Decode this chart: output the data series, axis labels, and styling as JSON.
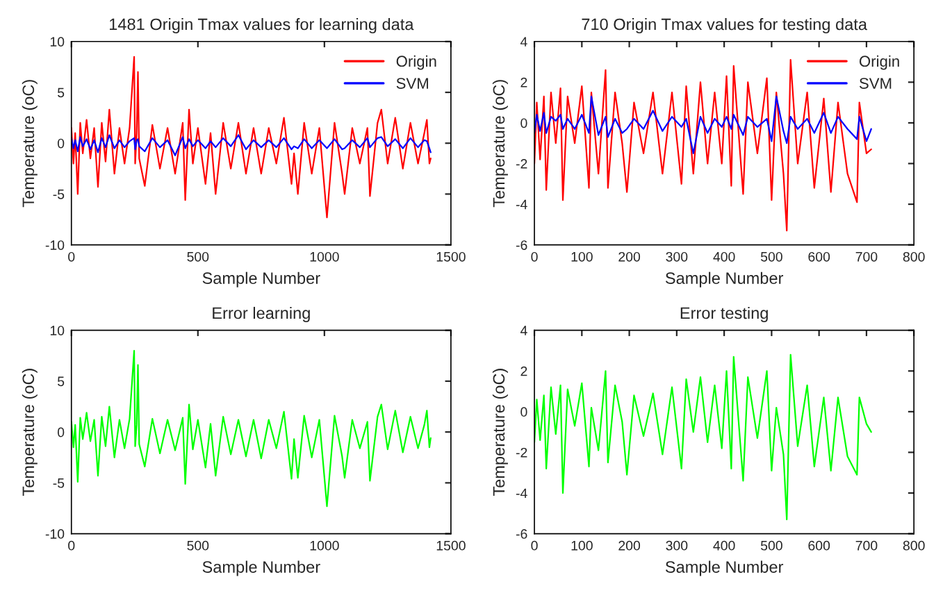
{
  "chart_data": [
    {
      "type": "line",
      "title": "1481 Origin Tmax values for learning data",
      "xlabel": "Sample Number",
      "ylabel": "Temperature (oC)",
      "xlim": [
        0,
        1500
      ],
      "xticks": [
        0,
        500,
        1000,
        1500
      ],
      "ylim": [
        -10,
        10
      ],
      "yticks": [
        -10,
        -5,
        0,
        5,
        10
      ],
      "legend": "top right",
      "x": [
        0,
        8,
        15,
        25,
        35,
        45,
        60,
        75,
        90,
        105,
        120,
        135,
        150,
        170,
        190,
        210,
        230,
        248,
        252,
        258,
        263,
        268,
        290,
        320,
        350,
        380,
        410,
        440,
        450,
        465,
        480,
        500,
        530,
        550,
        570,
        600,
        630,
        660,
        690,
        720,
        750,
        780,
        810,
        840,
        870,
        880,
        895,
        920,
        950,
        980,
        1010,
        1040,
        1070,
        1080,
        1110,
        1140,
        1170,
        1180,
        1210,
        1225,
        1250,
        1280,
        1310,
        1340,
        1370,
        1395,
        1405,
        1415,
        1420
      ],
      "series": [
        {
          "name": "Origin",
          "color": "#ff0000",
          "values": [
            1.5,
            -2,
            1,
            -5,
            2,
            -1,
            2.3,
            -1.5,
            1.5,
            -4.3,
            2,
            -1.8,
            3.3,
            -3,
            1.5,
            -2,
            1.5,
            8.5,
            -2,
            1,
            7,
            -1.5,
            -4.2,
            1.8,
            -2.5,
            1.5,
            -3,
            2,
            -5.6,
            3.3,
            -2,
            1.5,
            -4,
            1,
            -5,
            2,
            -2.5,
            2,
            -3,
            1.5,
            -3,
            1.5,
            -2,
            2.5,
            -4,
            -1,
            -5,
            2,
            -3,
            1.5,
            -7.3,
            2,
            -3,
            -5,
            1.5,
            -2,
            1.5,
            -5.2,
            2,
            3.3,
            -2,
            2.5,
            -2.5,
            2,
            -2,
            1,
            2.3,
            -2,
            -1.5
          ]
        },
        {
          "name": "SVM",
          "color": "#0000ff",
          "values": [
            0.5,
            -0.5,
            0.3,
            -0.8,
            0.6,
            -0.3,
            0.4,
            -0.6,
            0.3,
            -0.9,
            0.5,
            -0.4,
            0.8,
            -0.5,
            0.3,
            -0.4,
            0.2,
            0.5,
            -0.6,
            0.3,
            0.4,
            -0.3,
            -0.8,
            0.5,
            -0.4,
            0.3,
            -1.2,
            0.6,
            -0.5,
            0.4,
            -0.3,
            0.3,
            -0.5,
            0.2,
            -0.4,
            0.5,
            -0.3,
            0.8,
            -0.6,
            0.3,
            -0.4,
            0.3,
            -0.4,
            0.5,
            -0.6,
            -0.3,
            -0.5,
            0.4,
            -0.5,
            0.3,
            -0.5,
            0.4,
            -0.6,
            -0.5,
            0.3,
            -0.4,
            0.5,
            -0.4,
            0.5,
            0.6,
            -0.3,
            0.4,
            -0.5,
            0.5,
            -0.4,
            0.3,
            0.2,
            -0.5,
            -0.9
          ]
        }
      ]
    },
    {
      "type": "line",
      "title": "710 Origin Tmax values for testing data",
      "xlabel": "Sample Number",
      "ylabel": "Temperature (oC)",
      "xlim": [
        0,
        800
      ],
      "xticks": [
        0,
        100,
        200,
        300,
        400,
        500,
        600,
        700,
        800
      ],
      "ylim": [
        -6,
        4
      ],
      "yticks": [
        -6,
        -4,
        -2,
        0,
        2,
        4
      ],
      "legend": "top right",
      "x": [
        0,
        5,
        12,
        20,
        25,
        35,
        45,
        55,
        60,
        70,
        85,
        100,
        115,
        120,
        135,
        150,
        155,
        170,
        185,
        195,
        210,
        230,
        250,
        270,
        290,
        310,
        320,
        335,
        350,
        365,
        380,
        395,
        405,
        415,
        420,
        440,
        450,
        470,
        490,
        500,
        510,
        525,
        532,
        540,
        555,
        575,
        590,
        610,
        625,
        640,
        660,
        680,
        685,
        700,
        710
      ],
      "series": [
        {
          "name": "Origin",
          "color": "#ff0000",
          "values": [
            -2,
            1,
            -1.8,
            1.3,
            -3.3,
            1.5,
            -1,
            1.7,
            -3.8,
            1.3,
            -1,
            1.8,
            -3.2,
            1.5,
            -2.5,
            2.6,
            -3.2,
            1.5,
            -1,
            -3.4,
            1,
            -1.5,
            1.5,
            -2.5,
            1.5,
            -3,
            1.8,
            -2.5,
            2,
            -2,
            1.5,
            -2,
            2.3,
            -3.1,
            2.8,
            -3.5,
            2,
            -1.5,
            2.2,
            -3.8,
            1.5,
            -2.5,
            -5.3,
            3.1,
            -2,
            1.5,
            -3.2,
            1.2,
            -3.4,
            1,
            -2.5,
            -3.9,
            1,
            -1.5,
            -1.3
          ]
        },
        {
          "name": "SVM",
          "color": "#0000ff",
          "values": [
            -0.5,
            0.4,
            -0.4,
            0.5,
            -0.5,
            0.3,
            0.1,
            0.4,
            -0.3,
            0.2,
            -0.3,
            0.4,
            -0.5,
            1.3,
            -0.6,
            0.3,
            -0.7,
            0.2,
            -0.5,
            -0.3,
            0.2,
            -0.3,
            0.6,
            -0.4,
            0.3,
            -0.2,
            0.2,
            -1.5,
            0.3,
            -0.5,
            0.2,
            -0.2,
            0.3,
            -0.3,
            0.4,
            -0.6,
            0.3,
            -0.2,
            0.2,
            -0.9,
            1.3,
            -0.4,
            -1,
            0.3,
            -0.3,
            0.2,
            -0.5,
            0.5,
            -0.5,
            0.3,
            -0.3,
            -0.8,
            0.3,
            -0.9,
            -0.3
          ]
        }
      ]
    },
    {
      "type": "line",
      "title": "Error learning",
      "xlabel": "Sample Number",
      "ylabel": "Temperature (oC)",
      "xlim": [
        0,
        1500
      ],
      "xticks": [
        0,
        500,
        1000,
        1500
      ],
      "ylim": [
        -10,
        10
      ],
      "yticks": [
        -10,
        -5,
        0,
        5,
        10
      ],
      "x": [
        0,
        8,
        15,
        25,
        35,
        45,
        60,
        75,
        90,
        105,
        120,
        135,
        150,
        170,
        190,
        210,
        230,
        248,
        252,
        258,
        263,
        268,
        290,
        320,
        350,
        380,
        410,
        440,
        450,
        465,
        480,
        500,
        530,
        550,
        570,
        600,
        630,
        660,
        690,
        720,
        750,
        780,
        810,
        840,
        870,
        880,
        895,
        920,
        950,
        980,
        1010,
        1040,
        1070,
        1080,
        1110,
        1140,
        1170,
        1180,
        1210,
        1225,
        1250,
        1280,
        1310,
        1340,
        1370,
        1395,
        1405,
        1415,
        1420
      ],
      "series": [
        {
          "color": "#00ff00",
          "values": [
            1,
            -1.5,
            0.7,
            -4.9,
            1.4,
            -0.7,
            1.9,
            -0.9,
            1.2,
            -4.3,
            1.5,
            -1.4,
            2.5,
            -2.5,
            1.2,
            -1.6,
            1.3,
            8,
            -1.4,
            0.7,
            6.6,
            -1.2,
            -3.4,
            1.3,
            -2.1,
            1.2,
            -1.8,
            1.4,
            -5.1,
            2.7,
            -1.7,
            1.2,
            -3.5,
            0.8,
            -4.3,
            1.5,
            -2.2,
            1.2,
            -2.4,
            1.2,
            -2.6,
            1.2,
            -1.6,
            2,
            -4.6,
            -0.7,
            -4.5,
            1.6,
            -2.5,
            1.2,
            -7.3,
            1.6,
            -2.4,
            -4.5,
            1.2,
            -1.6,
            1,
            -4.8,
            1.5,
            2.7,
            -1.7,
            2.1,
            -2,
            1.5,
            -1.6,
            0.7,
            2.1,
            -1.5,
            -0.6
          ]
        }
      ]
    },
    {
      "type": "line",
      "title": "Error testing",
      "xlabel": "Sample Number",
      "ylabel": "Temperature (oC)",
      "xlim": [
        0,
        800
      ],
      "xticks": [
        0,
        100,
        200,
        300,
        400,
        500,
        600,
        700,
        800
      ],
      "ylim": [
        -6,
        4
      ],
      "yticks": [
        -6,
        -4,
        -2,
        0,
        2,
        4
      ],
      "x": [
        0,
        5,
        12,
        20,
        25,
        35,
        45,
        55,
        60,
        70,
        85,
        100,
        115,
        120,
        135,
        150,
        155,
        170,
        185,
        195,
        210,
        230,
        250,
        270,
        290,
        310,
        320,
        335,
        350,
        365,
        380,
        395,
        405,
        415,
        420,
        440,
        450,
        470,
        490,
        500,
        510,
        525,
        532,
        540,
        555,
        575,
        590,
        610,
        625,
        640,
        660,
        680,
        685,
        700,
        710
      ],
      "series": [
        {
          "color": "#00ff00",
          "values": [
            -1.5,
            0.6,
            -1.4,
            0.8,
            -2.8,
            1.2,
            -1.1,
            1.3,
            -4,
            1.1,
            -0.7,
            1.4,
            -2.7,
            0.2,
            -1.9,
            2,
            -2.5,
            1.3,
            -0.5,
            -3.1,
            0.8,
            -1.2,
            0.9,
            -2.1,
            1.2,
            -2.8,
            1.6,
            -1,
            1.7,
            -1.5,
            1.3,
            -1.8,
            2,
            -2.8,
            2.7,
            -3.4,
            1.7,
            -1.3,
            2,
            -2.9,
            0.2,
            -2.1,
            -5.3,
            2.8,
            -1.7,
            1.3,
            -2.7,
            0.7,
            -2.9,
            0.7,
            -2.2,
            -3.1,
            0.7,
            -0.6,
            -1
          ]
        }
      ]
    }
  ]
}
